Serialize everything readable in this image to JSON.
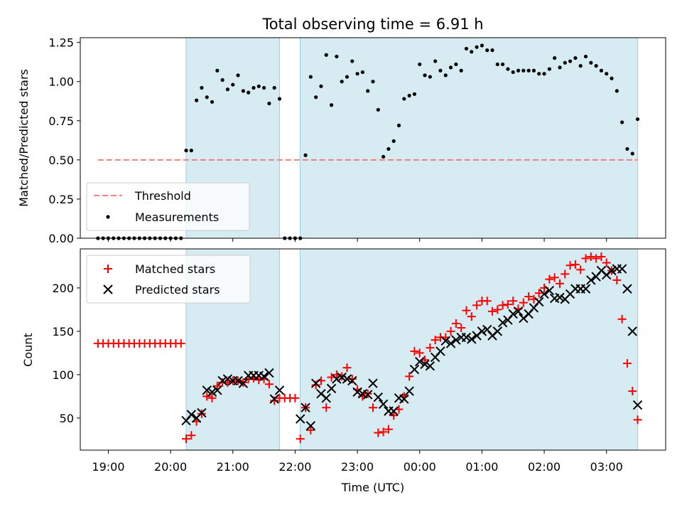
{
  "chart_data": [
    {
      "type": "scatter",
      "title": "Total observing time = 6.91 h",
      "xlabel": "",
      "ylabel": "Matched/Predicted stars",
      "ylim": [
        0,
        1.28
      ],
      "yticks": [
        "0.00",
        "0.25",
        "0.50",
        "0.75",
        "1.00",
        "1.25"
      ],
      "x_range_hours": [
        18.55,
        27.95
      ],
      "shaded_intervals": [
        [
          20.25,
          21.75
        ],
        [
          22.08,
          27.5
        ]
      ],
      "threshold": {
        "name": "Threshold",
        "value": 0.5,
        "x_start": "18:50",
        "x_end": "27:30",
        "color": "#f08080"
      },
      "legend": {
        "placement": "lower-left",
        "entries": [
          "Threshold",
          "Measurements"
        ]
      },
      "series": [
        {
          "name": "Measurements",
          "color": "#000000",
          "x": [
            "18:50",
            "18:55",
            "19:00",
            "19:05",
            "19:10",
            "19:15",
            "19:20",
            "19:25",
            "19:30",
            "19:35",
            "19:40",
            "19:45",
            "19:50",
            "19:55",
            "20:00",
            "20:05",
            "20:10",
            "20:15",
            "20:20",
            "20:25",
            "20:30",
            "20:35",
            "20:40",
            "20:45",
            "20:50",
            "20:55",
            "21:00",
            "21:05",
            "21:10",
            "21:15",
            "21:20",
            "21:25",
            "21:30",
            "21:35",
            "21:40",
            "21:45",
            "21:50",
            "21:55",
            "22:00",
            "22:05",
            "22:10",
            "22:15",
            "22:20",
            "22:25",
            "22:30",
            "22:35",
            "22:40",
            "22:45",
            "22:50",
            "22:55",
            "23:00",
            "23:05",
            "23:10",
            "23:15",
            "23:20",
            "23:25",
            "23:30",
            "23:35",
            "23:40",
            "23:45",
            "23:50",
            "23:55",
            "24:00",
            "24:05",
            "24:10",
            "24:15",
            "24:20",
            "24:25",
            "24:30",
            "24:35",
            "24:40",
            "24:45",
            "24:50",
            "24:55",
            "25:00",
            "25:05",
            "25:10",
            "25:15",
            "25:20",
            "25:25",
            "25:30",
            "25:35",
            "25:40",
            "25:45",
            "25:50",
            "25:55",
            "26:00",
            "26:05",
            "26:10",
            "26:15",
            "26:20",
            "26:25",
            "26:30",
            "26:35",
            "26:40",
            "26:45",
            "26:50",
            "26:55",
            "27:00",
            "27:05",
            "27:10",
            "27:15",
            "27:20",
            "27:25",
            "27:30"
          ],
          "y": [
            0,
            0,
            0,
            0,
            0,
            0,
            0,
            0,
            0,
            0,
            0,
            0,
            0,
            0,
            0,
            0,
            0,
            0.56,
            0.56,
            0.88,
            0.96,
            0.9,
            0.87,
            1.07,
            1.01,
            0.95,
            0.98,
            1.04,
            0.94,
            0.93,
            0.96,
            0.97,
            0.96,
            0.86,
            0.96,
            0.89,
            0,
            0,
            0,
            0,
            0.53,
            1.03,
            0.9,
            0.97,
            1.17,
            0.85,
            1.16,
            1.0,
            1.03,
            1.13,
            1.05,
            1.06,
            0.94,
            1.0,
            0.82,
            0.52,
            0.57,
            0.62,
            0.72,
            0.89,
            0.91,
            0.92,
            1.11,
            1.04,
            1.03,
            1.13,
            1.07,
            1.04,
            1.09,
            1.11,
            1.07,
            1.21,
            1.19,
            1.22,
            1.23,
            1.2,
            1.2,
            1.11,
            1.11,
            1.08,
            1.06,
            1.07,
            1.07,
            1.07,
            1.07,
            1.05,
            1.05,
            1.08,
            1.15,
            1.09,
            1.12,
            1.13,
            1.15,
            1.1,
            1.16,
            1.12,
            1.1,
            1.07,
            1.05,
            1.02,
            0.94,
            0.74,
            0.57,
            0.54,
            0.76
          ]
        }
      ]
    },
    {
      "type": "scatter",
      "title": "",
      "xlabel": "Time (UTC)",
      "ylabel": "Count",
      "ylim": [
        13,
        245
      ],
      "yticks": [
        "50",
        "100",
        "150",
        "200"
      ],
      "xticks": [
        "19:00",
        "20:00",
        "21:00",
        "22:00",
        "23:00",
        "00:00",
        "01:00",
        "02:00",
        "03:00"
      ],
      "x_range_hours": [
        18.55,
        27.95
      ],
      "shaded_intervals": [
        [
          20.25,
          21.75
        ],
        [
          22.08,
          27.5
        ]
      ],
      "legend": {
        "placement": "upper-left",
        "entries": [
          "Matched stars",
          "Predicted stars"
        ]
      },
      "series": [
        {
          "name": "Matched stars",
          "color": "#ff0000",
          "marker": "plus",
          "x": [
            "18:50",
            "18:55",
            "19:00",
            "19:05",
            "19:10",
            "19:15",
            "19:20",
            "19:25",
            "19:30",
            "19:35",
            "19:40",
            "19:45",
            "19:50",
            "19:55",
            "20:00",
            "20:05",
            "20:10",
            "20:15",
            "20:20",
            "20:25",
            "20:30",
            "20:35",
            "20:40",
            "20:45",
            "20:50",
            "20:55",
            "21:00",
            "21:05",
            "21:10",
            "21:15",
            "21:20",
            "21:25",
            "21:30",
            "21:35",
            "21:40",
            "21:45",
            "21:50",
            "21:55",
            "22:00",
            "22:05",
            "22:10",
            "22:15",
            "22:20",
            "22:25",
            "22:30",
            "22:35",
            "22:40",
            "22:45",
            "22:50",
            "22:55",
            "23:00",
            "23:05",
            "23:10",
            "23:15",
            "23:20",
            "23:25",
            "23:30",
            "23:35",
            "23:40",
            "23:45",
            "23:50",
            "23:55",
            "24:00",
            "24:05",
            "24:10",
            "24:15",
            "24:20",
            "24:25",
            "24:30",
            "24:35",
            "24:40",
            "24:45",
            "24:50",
            "24:55",
            "25:00",
            "25:05",
            "25:10",
            "25:15",
            "25:20",
            "25:25",
            "25:30",
            "25:35",
            "25:40",
            "25:45",
            "25:50",
            "25:55",
            "26:00",
            "26:05",
            "26:10",
            "26:15",
            "26:20",
            "26:25",
            "26:30",
            "26:35",
            "26:40",
            "26:45",
            "26:50",
            "26:55",
            "27:00",
            "27:05",
            "27:10",
            "27:15",
            "27:20",
            "27:25",
            "27:30"
          ],
          "y": [
            136,
            136,
            136,
            136,
            136,
            136,
            136,
            136,
            136,
            136,
            136,
            136,
            136,
            136,
            136,
            136,
            136,
            26,
            30,
            46,
            55,
            75,
            73,
            87,
            91,
            91,
            93,
            93,
            91,
            95,
            96,
            94,
            95,
            89,
            70,
            73,
            73,
            73,
            73,
            26,
            62,
            36,
            88,
            93,
            62,
            97,
            100,
            98,
            108,
            95,
            83,
            75,
            78,
            62,
            33,
            34,
            37,
            53,
            60,
            75,
            98,
            127,
            125,
            117,
            131,
            140,
            143,
            143,
            150,
            159,
            154,
            174,
            167,
            180,
            185,
            185,
            173,
            175,
            180,
            181,
            185,
            176,
            183,
            190,
            187,
            194,
            200,
            210,
            212,
            205,
            216,
            226,
            227,
            221,
            234,
            236,
            234,
            236,
            229,
            220,
            209,
            164,
            113,
            81,
            48
          ]
        },
        {
          "name": "Predicted stars",
          "color": "#000000",
          "marker": "x",
          "x": [
            "20:15",
            "20:20",
            "20:25",
            "20:30",
            "20:35",
            "20:40",
            "20:45",
            "20:50",
            "20:55",
            "21:00",
            "21:05",
            "21:10",
            "21:15",
            "21:20",
            "21:25",
            "21:30",
            "21:35",
            "21:40",
            "21:45",
            "22:05",
            "22:10",
            "22:15",
            "22:20",
            "22:25",
            "22:30",
            "22:35",
            "22:40",
            "22:45",
            "22:50",
            "22:55",
            "23:00",
            "23:05",
            "23:10",
            "23:15",
            "23:20",
            "23:25",
            "23:30",
            "23:35",
            "23:40",
            "23:45",
            "23:50",
            "23:55",
            "24:00",
            "24:05",
            "24:10",
            "24:15",
            "24:20",
            "24:25",
            "24:30",
            "24:35",
            "24:40",
            "24:45",
            "24:50",
            "24:55",
            "25:00",
            "25:05",
            "25:10",
            "25:15",
            "25:20",
            "25:25",
            "25:30",
            "25:35",
            "25:40",
            "25:45",
            "25:50",
            "25:55",
            "26:00",
            "26:05",
            "26:10",
            "26:15",
            "26:20",
            "26:25",
            "26:30",
            "26:35",
            "26:40",
            "26:45",
            "26:50",
            "26:55",
            "27:00",
            "27:05",
            "27:10",
            "27:15",
            "27:20",
            "27:25",
            "27:30"
          ],
          "y": [
            47,
            54,
            50,
            56,
            82,
            80,
            82,
            93,
            95,
            93,
            93,
            90,
            99,
            99,
            99,
            98,
            102,
            72,
            82,
            49,
            62,
            41,
            90,
            78,
            73,
            84,
            95,
            97,
            95,
            93,
            80,
            78,
            77,
            90,
            74,
            66,
            58,
            58,
            73,
            72,
            81,
            106,
            115,
            112,
            110,
            120,
            127,
            139,
            136,
            140,
            143,
            143,
            141,
            145,
            150,
            152,
            145,
            150,
            160,
            163,
            170,
            173,
            165,
            170,
            177,
            184,
            193,
            197,
            188,
            189,
            187,
            193,
            199,
            199,
            199,
            209,
            213,
            220,
            215,
            220,
            222,
            222,
            199,
            150,
            65
          ]
        }
      ]
    }
  ]
}
